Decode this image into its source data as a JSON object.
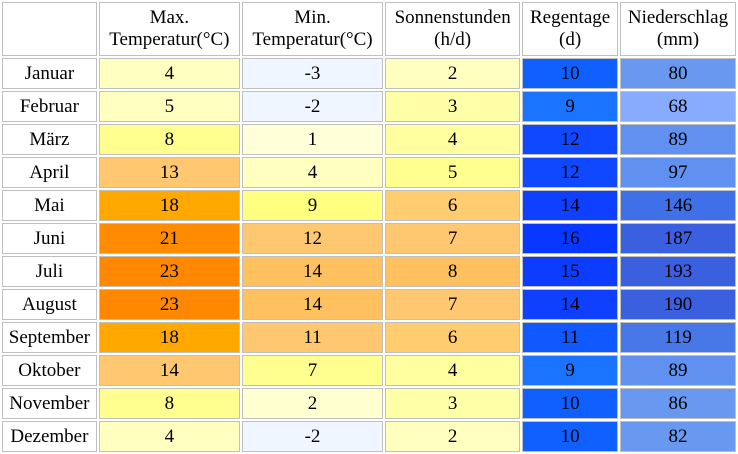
{
  "headers": {
    "max_temp": [
      "Max.",
      "Temperatur(°C)"
    ],
    "min_temp": [
      "Min.",
      "Temperatur(°C)"
    ],
    "sunshine": [
      "Sonnenstunden",
      "(h/d)"
    ],
    "rain_days": [
      "Regentage",
      "(d)"
    ],
    "precipitation": [
      "Niederschlag",
      "(mm)"
    ]
  },
  "rows": [
    {
      "month": "Januar",
      "max": "4",
      "min": "-3",
      "sun": "2",
      "rain": "10",
      "prec": "80",
      "colors": {
        "max": "#ffffc0",
        "min": "#f0f6ff",
        "sun": "#ffffc0",
        "rain": "#1060ff",
        "prec": "#6898f0"
      }
    },
    {
      "month": "Februar",
      "max": "5",
      "min": "-2",
      "sun": "3",
      "rain": "9",
      "prec": "68",
      "colors": {
        "max": "#ffffc0",
        "min": "#f0f6ff",
        "sun": "#ffffa8",
        "rain": "#1a74ff",
        "prec": "#88aaff"
      }
    },
    {
      "month": "März",
      "max": "8",
      "min": "1",
      "sun": "4",
      "rain": "12",
      "prec": "89",
      "colors": {
        "max": "#ffff90",
        "min": "#ffffd8",
        "sun": "#ffffa0",
        "rain": "#1048ff",
        "prec": "#6090f0"
      }
    },
    {
      "month": "April",
      "max": "13",
      "min": "4",
      "sun": "5",
      "rain": "12",
      "prec": "97",
      "colors": {
        "max": "#ffc870",
        "min": "#ffffc0",
        "sun": "#ffff90",
        "rain": "#1048ff",
        "prec": "#6090f0"
      }
    },
    {
      "month": "Mai",
      "max": "18",
      "min": "9",
      "sun": "6",
      "rain": "14",
      "prec": "146",
      "colors": {
        "max": "#ffa800",
        "min": "#ffff80",
        "sun": "#ffcc70",
        "rain": "#1040ff",
        "prec": "#4070e8"
      }
    },
    {
      "month": "Juni",
      "max": "21",
      "min": "12",
      "sun": "7",
      "rain": "16",
      "prec": "187",
      "colors": {
        "max": "#ff8c00",
        "min": "#ffc870",
        "sun": "#ffc870",
        "rain": "#0838ff",
        "prec": "#3a60e0"
      }
    },
    {
      "month": "Juli",
      "max": "23",
      "min": "14",
      "sun": "8",
      "rain": "15",
      "prec": "193",
      "colors": {
        "max": "#ff8800",
        "min": "#ffc060",
        "sun": "#ffc060",
        "rain": "#0c3cff",
        "prec": "#3a60e0"
      }
    },
    {
      "month": "August",
      "max": "23",
      "min": "14",
      "sun": "7",
      "rain": "14",
      "prec": "190",
      "colors": {
        "max": "#ff8800",
        "min": "#ffc060",
        "sun": "#ffc870",
        "rain": "#1040ff",
        "prec": "#3a60e0"
      }
    },
    {
      "month": "September",
      "max": "18",
      "min": "11",
      "sun": "6",
      "rain": "11",
      "prec": "119",
      "colors": {
        "max": "#ffa800",
        "min": "#ffc870",
        "sun": "#ffcc70",
        "rain": "#1058ff",
        "prec": "#4878e8"
      }
    },
    {
      "month": "Oktober",
      "max": "14",
      "min": "7",
      "sun": "4",
      "rain": "9",
      "prec": "89",
      "colors": {
        "max": "#ffc870",
        "min": "#ffff90",
        "sun": "#ffffa0",
        "rain": "#1a74ff",
        "prec": "#6090f0"
      }
    },
    {
      "month": "November",
      "max": "8",
      "min": "2",
      "sun": "3",
      "rain": "10",
      "prec": "86",
      "colors": {
        "max": "#ffff90",
        "min": "#ffffd0",
        "sun": "#ffffa8",
        "rain": "#1060ff",
        "prec": "#6898f0"
      }
    },
    {
      "month": "Dezember",
      "max": "4",
      "min": "-2",
      "sun": "2",
      "rain": "10",
      "prec": "82",
      "colors": {
        "max": "#ffffc0",
        "min": "#f0f6ff",
        "sun": "#ffffc0",
        "rain": "#1060ff",
        "prec": "#6898f0"
      }
    }
  ]
}
